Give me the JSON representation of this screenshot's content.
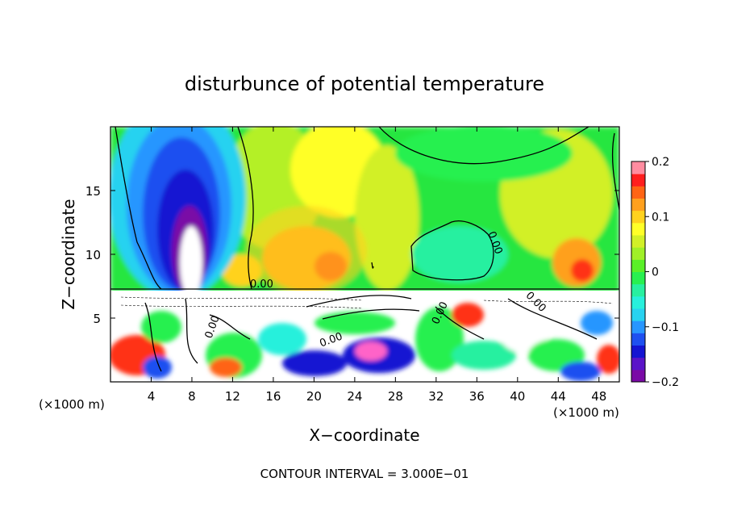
{
  "chart_data": {
    "type": "heatmap",
    "title": "disturbunce of potential temperature",
    "xlabel": "X−coordinate",
    "ylabel": "Z−coordinate",
    "x_unit": "(×1000 m)",
    "y_unit": "(×1000 m)",
    "xlim": [
      0,
      50
    ],
    "ylim": [
      0,
      20
    ],
    "x_ticks": [
      4,
      8,
      12,
      16,
      20,
      24,
      28,
      32,
      36,
      40,
      44,
      48
    ],
    "y_ticks": [
      5,
      10,
      15
    ],
    "footer": "CONTOUR INTERVAL = 3.000E−01",
    "contour_labels": [
      "0.00",
      "0.00",
      "0.00",
      "0.00",
      "0.00",
      "0.00"
    ],
    "colorbar": {
      "range": [
        -0.2,
        0.2
      ],
      "tick_labels": [
        "0.2",
        "0.1",
        "0",
        "−0.1",
        "−0.2"
      ],
      "tick_values": [
        0.2,
        0.1,
        0,
        -0.1,
        -0.2
      ],
      "levels": [
        {
          "value": -0.2,
          "color": "#7a0aa6"
        },
        {
          "value": -0.175,
          "color": "#5a14c8"
        },
        {
          "value": -0.15,
          "color": "#1414d2"
        },
        {
          "value": -0.125,
          "color": "#1e50f0"
        },
        {
          "value": -0.1,
          "color": "#2896ff"
        },
        {
          "value": -0.075,
          "color": "#28d2f0"
        },
        {
          "value": -0.05,
          "color": "#28f0dc"
        },
        {
          "value": -0.025,
          "color": "#28f0a0"
        },
        {
          "value": 0.0,
          "color": "#28f050"
        },
        {
          "value": 0.025,
          "color": "#5af028"
        },
        {
          "value": 0.05,
          "color": "#a0f028"
        },
        {
          "value": 0.075,
          "color": "#d2f028"
        },
        {
          "value": 0.1,
          "color": "#ffff28"
        },
        {
          "value": 0.125,
          "color": "#ffd21e"
        },
        {
          "value": 0.15,
          "color": "#ffa01e"
        },
        {
          "value": 0.175,
          "color": "#ff6414"
        },
        {
          "value": 0.2,
          "color": "#ff1e1e"
        },
        {
          "value": 0.225,
          "color": "#ff8ca0"
        }
      ]
    },
    "regions": [
      {
        "kind": "warm-anomaly",
        "x_range": [
          17,
          25
        ],
        "z_range": [
          7,
          12
        ],
        "max_value": 0.16
      },
      {
        "kind": "cold-anomaly",
        "x_range": [
          1,
          13
        ],
        "z_range": [
          8,
          19.5
        ],
        "min_value": -0.2
      },
      {
        "kind": "warm-anomaly",
        "x_range": [
          43,
          49
        ],
        "z_range": [
          7,
          11
        ],
        "max_value": 0.15
      },
      {
        "kind": "out-of-range-boundary-layer",
        "x_range": [
          0,
          50
        ],
        "z_range": [
          0,
          7.3
        ]
      }
    ]
  }
}
